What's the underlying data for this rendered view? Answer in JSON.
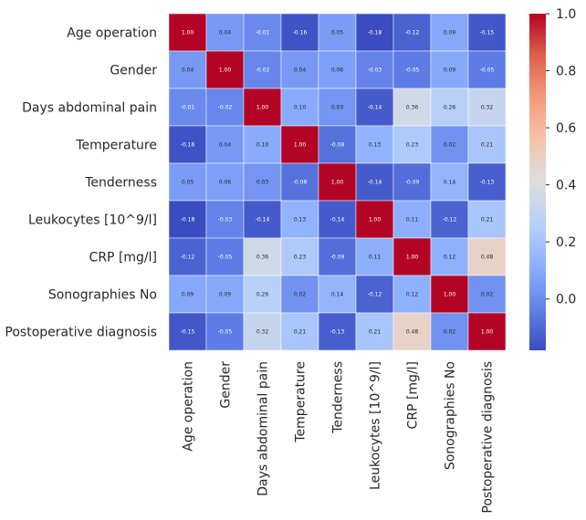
{
  "chart_data": {
    "type": "heatmap",
    "title": "",
    "xlabel": "",
    "ylabel": "",
    "rows": [
      "Age operation",
      "Gender",
      "Days abdominal pain",
      "Temperature",
      "Tenderness",
      "Leukocytes [10^9/l]",
      "CRP [mg/l]",
      "Sonographies No",
      "Postoperative diagnosis"
    ],
    "columns": [
      "Age operation",
      "Gender",
      "Days abdominal pain",
      "Temperature",
      "Tenderness",
      "Leukocytes [10^9/l]",
      "CRP [mg/l]",
      "Sonographies No",
      "Postoperative diagnosis"
    ],
    "values": [
      [
        1.0,
        0.04,
        -0.01,
        -0.16,
        0.05,
        -0.18,
        -0.12,
        0.09,
        -0.15
      ],
      [
        0.04,
        1.0,
        -0.02,
        0.04,
        0.06,
        -0.03,
        -0.05,
        0.09,
        -0.05
      ],
      [
        -0.01,
        -0.02,
        1.0,
        0.1,
        0.03,
        -0.14,
        0.36,
        0.26,
        0.32
      ],
      [
        -0.16,
        0.04,
        0.1,
        1.0,
        -0.08,
        0.13,
        0.23,
        0.02,
        0.21
      ],
      [
        0.05,
        0.06,
        0.03,
        -0.08,
        1.0,
        -0.14,
        -0.09,
        0.14,
        -0.13
      ],
      [
        -0.18,
        -0.03,
        -0.14,
        0.13,
        -0.14,
        1.0,
        0.11,
        -0.12,
        0.21
      ],
      [
        -0.12,
        -0.05,
        0.36,
        0.23,
        -0.09,
        0.11,
        1.0,
        0.12,
        0.48
      ],
      [
        0.09,
        0.09,
        0.26,
        0.02,
        0.14,
        -0.12,
        0.12,
        1.0,
        0.02
      ],
      [
        -0.15,
        -0.05,
        0.32,
        0.21,
        -0.13,
        0.21,
        0.48,
        0.02,
        1.0
      ]
    ],
    "value_labels": [
      [
        "1.00",
        "0.04",
        "-0.01",
        "-0.16",
        "0.05",
        "-0.18",
        "-0.12",
        "0.09",
        "-0.15"
      ],
      [
        "0.04",
        "1.00",
        "-0.02",
        "0.04",
        "0.06",
        "-0.03",
        "-0.05",
        "0.09",
        "-0.05"
      ],
      [
        "-0.01",
        "-0.02",
        "1.00",
        "0.10",
        "0.03",
        "-0.14",
        "0.36",
        "0.26",
        "0.32"
      ],
      [
        "-0.16",
        "0.04",
        "0.10",
        "1.00",
        "-0.08",
        "0.13",
        "0.23",
        "0.02",
        "0.21"
      ],
      [
        "0.05",
        "0.06",
        "0.03",
        "-0.08",
        "1.00",
        "-0.14",
        "-0.09",
        "0.14",
        "-0.13"
      ],
      [
        "-0.18",
        "-0.03",
        "-0.14",
        "0.13",
        "-0.14",
        "1.00",
        "0.11",
        "-0.12",
        "0.21"
      ],
      [
        "-0.12",
        "-0.05",
        "0.36",
        "0.23",
        "-0.09",
        "0.11",
        "1.00",
        "0.12",
        "0.48"
      ],
      [
        "0.09",
        "0.09",
        "0.26",
        "0.02",
        "0.14",
        "-0.12",
        "0.12",
        "1.00",
        "0.02"
      ],
      [
        "-0.15",
        "-0.05",
        "0.32",
        "0.21",
        "-0.13",
        "0.21",
        "0.48",
        "0.02",
        "1.00"
      ]
    ],
    "colorbar": {
      "colormap": "coolwarm",
      "range": [
        -0.18,
        1.0
      ],
      "ticks": [
        0.0,
        0.2,
        0.4,
        0.6,
        0.8,
        1.0
      ],
      "tick_labels": [
        "0.0",
        "0.2",
        "0.4",
        "0.6",
        "0.8",
        "1.0"
      ]
    },
    "annotations": true,
    "cell_borders": "white",
    "grid": false
  }
}
